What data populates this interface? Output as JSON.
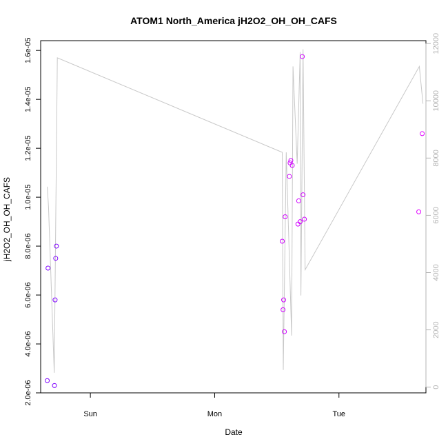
{
  "chart_data": {
    "type": "scatter",
    "title": "ATOM1 North_America jH2O2_OH_OH_CAFS",
    "xlabel": "Date",
    "ylabel": "jH2O2_OH_OH_CAFS",
    "x_ticks": [
      {
        "value": 1.0,
        "label": "Sun"
      },
      {
        "value": 2.0,
        "label": "Mon"
      },
      {
        "value": 3.0,
        "label": "Tue"
      }
    ],
    "xlim": [
      0.6,
      3.7
    ],
    "y_left": {
      "lim": [
        2e-06,
        1.64e-05
      ],
      "ticks": [
        {
          "value": 2e-06,
          "label": "2.0e-06"
        },
        {
          "value": 4e-06,
          "label": "4.0e-06"
        },
        {
          "value": 6e-06,
          "label": "6.0e-06"
        },
        {
          "value": 8e-06,
          "label": "8.0e-06"
        },
        {
          "value": 1e-05,
          "label": "1.0e-05"
        },
        {
          "value": 1.2e-05,
          "label": "1.2e-05"
        },
        {
          "value": 1.4e-05,
          "label": "1.4e-05"
        },
        {
          "value": 1.6e-05,
          "label": "1.6e-05"
        }
      ]
    },
    "y_right": {
      "lim": [
        -200,
        12100
      ],
      "ticks": [
        {
          "value": 0,
          "label": "0"
        },
        {
          "value": 2000,
          "label": "2000"
        },
        {
          "value": 4000,
          "label": "4000"
        },
        {
          "value": 6000,
          "label": "6000"
        },
        {
          "value": 8000,
          "label": "8000"
        },
        {
          "value": 10000,
          "label": "10000"
        },
        {
          "value": 12000,
          "label": "12000"
        }
      ],
      "color": "#b3b3b3"
    },
    "series": [
      {
        "axis": "left",
        "marker": "open-circle",
        "points": [
          {
            "x": 0.653,
            "y": 2.5e-06,
            "color": "#7f00ff"
          },
          {
            "x": 0.659,
            "y": 7.1e-06,
            "color": "#7f00ff"
          },
          {
            "x": 0.711,
            "y": 2.3e-06,
            "color": "#7f00ff"
          },
          {
            "x": 0.716,
            "y": 5.8e-06,
            "color": "#7f00ff"
          },
          {
            "x": 0.721,
            "y": 7.5e-06,
            "color": "#7f00ff"
          },
          {
            "x": 0.727,
            "y": 8e-06,
            "color": "#7f00ff"
          },
          {
            "x": 2.544,
            "y": 8.2e-06,
            "color": "#d000ff"
          },
          {
            "x": 2.55,
            "y": 5.4e-06,
            "color": "#d000ff"
          },
          {
            "x": 2.555,
            "y": 5.8e-06,
            "color": "#d000ff"
          },
          {
            "x": 2.561,
            "y": 4.5e-06,
            "color": "#d000ff"
          },
          {
            "x": 2.567,
            "y": 9.2e-06,
            "color": "#d000ff"
          },
          {
            "x": 2.601,
            "y": 1.085e-05,
            "color": "#d000ff"
          },
          {
            "x": 2.607,
            "y": 1.14e-05,
            "color": "#d000ff"
          },
          {
            "x": 2.613,
            "y": 1.15e-05,
            "color": "#d000ff"
          },
          {
            "x": 2.624,
            "y": 1.13e-05,
            "color": "#d000ff"
          },
          {
            "x": 2.67,
            "y": 8.9e-06,
            "color": "#d000ff"
          },
          {
            "x": 2.676,
            "y": 9.85e-06,
            "color": "#d000ff"
          },
          {
            "x": 2.688,
            "y": 9e-06,
            "color": "#d000ff"
          },
          {
            "x": 2.705,
            "y": 1.575e-05,
            "color": "#d000ff"
          },
          {
            "x": 2.711,
            "y": 1.01e-05,
            "color": "#d000ff"
          },
          {
            "x": 2.722,
            "y": 9.1e-06,
            "color": "#d000ff"
          },
          {
            "x": 3.642,
            "y": 9.4e-06,
            "color": "#e000ff"
          },
          {
            "x": 3.67,
            "y": 1.26e-05,
            "color": "#e000ff"
          }
        ]
      },
      {
        "axis": "right",
        "type": "line",
        "color": "#c8c8c8",
        "points": [
          {
            "x": 0.653,
            "y": 7000
          },
          {
            "x": 0.663,
            "y": 6300
          },
          {
            "x": 0.709,
            "y": 500
          },
          {
            "x": 0.734,
            "y": 11500
          },
          {
            "x": 2.544,
            "y": 8200
          },
          {
            "x": 2.552,
            "y": 600
          },
          {
            "x": 2.576,
            "y": 8200
          },
          {
            "x": 2.619,
            "y": 1800
          },
          {
            "x": 2.63,
            "y": 11200
          },
          {
            "x": 2.664,
            "y": 7800
          },
          {
            "x": 2.688,
            "y": 11700
          },
          {
            "x": 2.694,
            "y": 3200
          },
          {
            "x": 2.711,
            "y": 11800
          },
          {
            "x": 2.728,
            "y": 4100
          },
          {
            "x": 3.647,
            "y": 11200
          },
          {
            "x": 3.676,
            "y": 9900
          }
        ]
      }
    ]
  }
}
